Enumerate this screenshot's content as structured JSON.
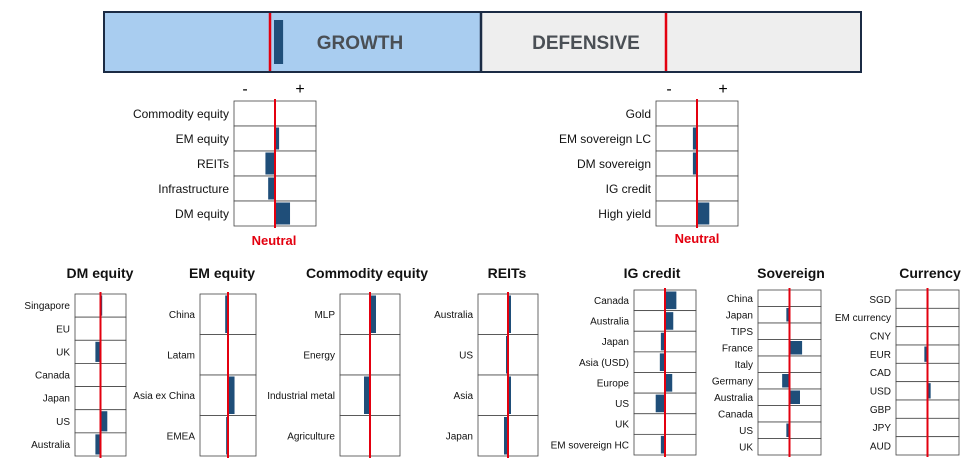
{
  "header": {
    "growth_label": "GROWTH",
    "defensive_label": "DEFENSIVE",
    "growth_color": "#a9cdf0",
    "defensive_color": "#eeeeee",
    "bar_color": "#1f4e79",
    "neutral_color": "#e3000f",
    "border_color": "#1b2b44",
    "growth_tilt": 0.7
  },
  "neutral_label": "Neutral",
  "minus_label": "-",
  "plus_label": "+",
  "chart_data": [
    {
      "type": "bar",
      "title": "",
      "group": "growth",
      "xlim": [
        -3,
        3
      ],
      "categories": [
        "Commodity equity",
        "EM equity",
        "REITs",
        "Infrastructure",
        "DM equity"
      ],
      "values": [
        0,
        0.3,
        -0.7,
        -0.5,
        1.1
      ]
    },
    {
      "type": "bar",
      "title": "",
      "group": "defensive",
      "xlim": [
        -3,
        3
      ],
      "categories": [
        "Gold",
        "EM sovereign LC",
        "DM sovereign",
        "IG credit",
        "High yield"
      ],
      "values": [
        0,
        -0.3,
        -0.3,
        0,
        0.9
      ]
    },
    {
      "type": "bar",
      "title": "DM equity",
      "xlim": [
        -3,
        3
      ],
      "categories": [
        "Singapore",
        "EU",
        "UK",
        "Canada",
        "Japan",
        "US",
        "Australia"
      ],
      "values": [
        0.2,
        0,
        -0.6,
        0,
        0,
        0.8,
        -0.6
      ]
    },
    {
      "type": "bar",
      "title": "EM equity",
      "xlim": [
        -3,
        3
      ],
      "categories": [
        "China",
        "Latam",
        "Asia ex China",
        "EMEA"
      ],
      "values": [
        -0.3,
        0,
        0.7,
        -0.2
      ]
    },
    {
      "type": "bar",
      "title": "Commodity equity",
      "xlim": [
        -3,
        3
      ],
      "categories": [
        "MLP",
        "Energy",
        "Industrial metal",
        "Agriculture"
      ],
      "values": [
        0.6,
        0,
        -0.6,
        0
      ]
    },
    {
      "type": "bar",
      "title": "REITs",
      "xlim": [
        -3,
        3
      ],
      "categories": [
        "Australia",
        "US",
        "Asia",
        "Japan"
      ],
      "values": [
        0.3,
        -0.2,
        0.3,
        -0.4
      ]
    },
    {
      "type": "bar",
      "title": "IG credit",
      "xlim": [
        -3,
        3
      ],
      "categories": [
        "Canada",
        "Australia",
        "Japan",
        "Asia (USD)",
        "Europe",
        "US",
        "UK",
        "EM sovereign HC"
      ],
      "values": [
        1.1,
        0.8,
        -0.4,
        -0.5,
        0.7,
        -0.9,
        0,
        -0.4
      ]
    },
    {
      "type": "bar",
      "title": "Sovereign",
      "xlim": [
        -3,
        3
      ],
      "categories": [
        "China",
        "Japan",
        "TIPS",
        "France",
        "Italy",
        "Germany",
        "Australia",
        "Canada",
        "US",
        "UK"
      ],
      "values": [
        0,
        -0.3,
        0,
        1.2,
        0,
        -0.7,
        1.0,
        0,
        -0.3,
        0
      ]
    },
    {
      "type": "bar",
      "title": "Currency",
      "xlim": [
        -3,
        3
      ],
      "categories": [
        "SGD",
        "EM currency",
        "CNY",
        "EUR",
        "CAD",
        "USD",
        "GBP",
        "JPY",
        "AUD"
      ],
      "values": [
        0.1,
        0,
        0,
        -0.3,
        0,
        0.3,
        0,
        0,
        0
      ]
    }
  ]
}
